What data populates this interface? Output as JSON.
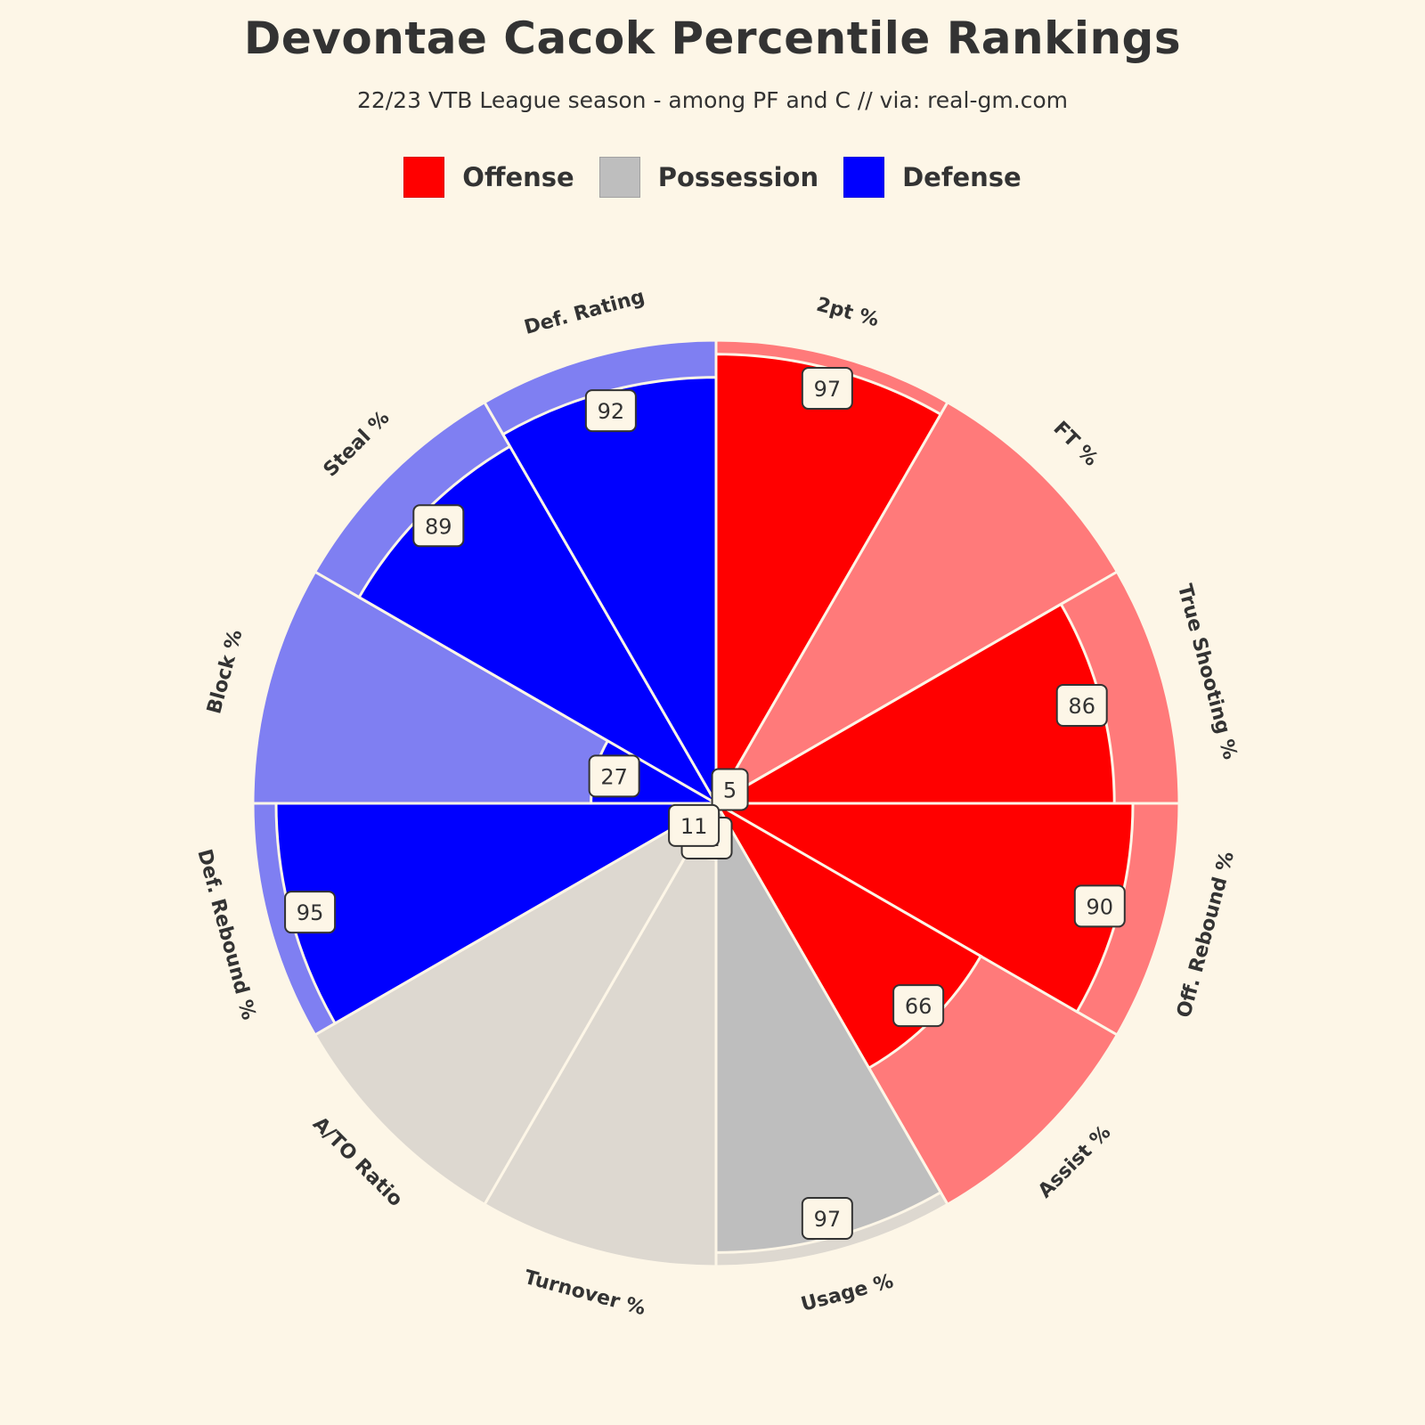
{
  "chart_data": {
    "type": "pie",
    "subtype": "polar-bar",
    "title": "Devontae Cacok Percentile Rankings",
    "subtitle": "22/23 VTB League season - among PF and C // via: real-gm.com",
    "rlim": [
      0,
      100
    ],
    "legend": [
      {
        "name": "Offense",
        "color": "#ff0000"
      },
      {
        "name": "Possession",
        "color": "#bebebe"
      },
      {
        "name": "Defense",
        "color": "#0000ff"
      }
    ],
    "categories": [
      "2pt %",
      "FT %",
      "True Shooting %",
      "Off. Rebound %",
      "Assist %",
      "Usage %",
      "Turnover %",
      "A/TO Ratio",
      "Def. Rebound %",
      "Block %",
      "Steal %",
      "Def. Rating"
    ],
    "values": [
      97,
      5,
      86,
      90,
      66,
      97,
      12,
      11,
      95,
      27,
      89,
      92
    ],
    "groups": [
      "Offense",
      "Offense",
      "Offense",
      "Offense",
      "Offense",
      "Possession",
      "Possession",
      "Possession",
      "Defense",
      "Defense",
      "Defense",
      "Defense"
    ],
    "colors": {
      "Offense": {
        "bar": "#ff0000",
        "bg": "#ff7a7a"
      },
      "Possession": {
        "bar": "#bebebe",
        "bg": "#ddd8d0"
      },
      "Defense": {
        "bar": "#0000ff",
        "bg": "#7f7ff2"
      }
    },
    "grid": false
  }
}
